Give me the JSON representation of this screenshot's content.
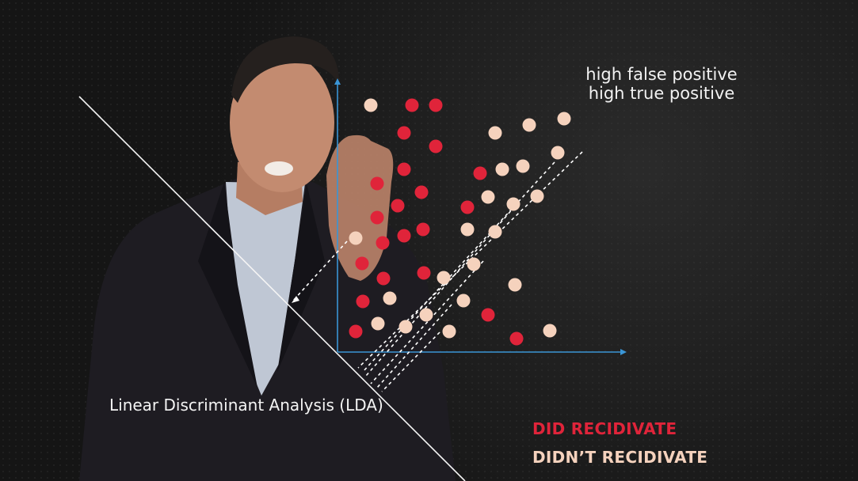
{
  "annotation": {
    "line1": "high false positive",
    "line2": "high true positive"
  },
  "method_label": "Linear Discriminant Analysis (LDA)",
  "legend": {
    "did_label": "DID RECIDIVATE",
    "didnt_label": "DIDN’T RECIDIVATE",
    "did_color": "#e0243a",
    "didnt_color": "#f5d2bd"
  },
  "points": {
    "did": [
      [
        520,
        133
      ],
      [
        550,
        133
      ],
      [
        510,
        168
      ],
      [
        550,
        185
      ],
      [
        510,
        214
      ],
      [
        606,
        219
      ],
      [
        476,
        232
      ],
      [
        532,
        243
      ],
      [
        502,
        260
      ],
      [
        590,
        262
      ],
      [
        476,
        275
      ],
      [
        510,
        298
      ],
      [
        534,
        290
      ],
      [
        483,
        307
      ],
      [
        457,
        333
      ],
      [
        535,
        345
      ],
      [
        484,
        352
      ],
      [
        458,
        381
      ],
      [
        616,
        398
      ],
      [
        449,
        419
      ],
      [
        652,
        428
      ]
    ],
    "didnt": [
      [
        468,
        133
      ],
      [
        625,
        168
      ],
      [
        668,
        158
      ],
      [
        712,
        150
      ],
      [
        704,
        193
      ],
      [
        634,
        214
      ],
      [
        660,
        210
      ],
      [
        616,
        249
      ],
      [
        648,
        258
      ],
      [
        678,
        248
      ],
      [
        590,
        290
      ],
      [
        625,
        293
      ],
      [
        449,
        301
      ],
      [
        598,
        334
      ],
      [
        560,
        351
      ],
      [
        650,
        360
      ],
      [
        492,
        377
      ],
      [
        585,
        380
      ],
      [
        538,
        398
      ],
      [
        477,
        409
      ],
      [
        512,
        413
      ],
      [
        567,
        419
      ],
      [
        694,
        418
      ]
    ]
  }
}
